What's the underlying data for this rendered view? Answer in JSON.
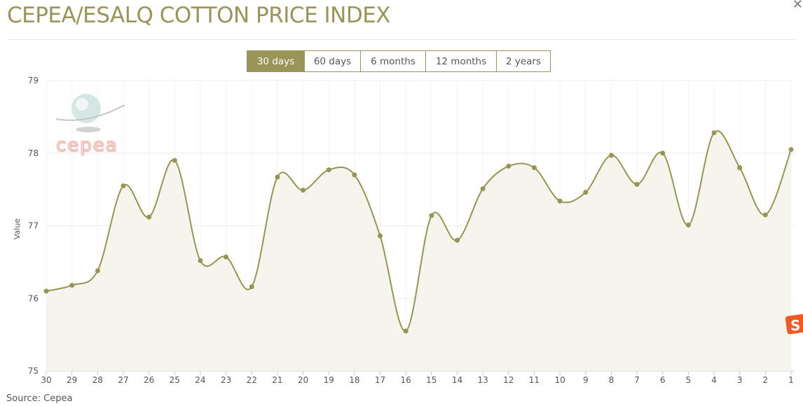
{
  "header": {
    "title": "CEPEA/ESALQ COTTON PRICE INDEX",
    "close_icon": "close-icon"
  },
  "range_buttons": [
    {
      "label": "30 days",
      "active": true
    },
    {
      "label": "60 days",
      "active": false
    },
    {
      "label": "6 months",
      "active": false
    },
    {
      "label": "12 months",
      "active": false
    },
    {
      "label": "2 years",
      "active": false
    }
  ],
  "watermark": {
    "logo_text": "cepea"
  },
  "footer": {
    "source": "Source: Cepea"
  },
  "colors": {
    "accent": "#999558",
    "line": "#979552",
    "fill": "#f5f5ee",
    "logo": "#f0b8b0"
  },
  "chart_data": {
    "type": "area",
    "title": "CEPEA/ESALQ COTTON PRICE INDEX",
    "xlabel": "",
    "ylabel": "Value",
    "ylim": [
      75,
      79
    ],
    "yticks": [
      75,
      76,
      77,
      78,
      79
    ],
    "grid": true,
    "categories": [
      "30",
      "29",
      "28",
      "27",
      "26",
      "25",
      "24",
      "23",
      "22",
      "21",
      "20",
      "19",
      "18",
      "17",
      "16",
      "15",
      "14",
      "13",
      "12",
      "11",
      "10",
      "9",
      "8",
      "7",
      "6",
      "5",
      "4",
      "3",
      "2",
      "1"
    ],
    "series": [
      {
        "name": "Value",
        "values": [
          76.1,
          76.18,
          76.38,
          77.55,
          77.12,
          77.9,
          76.52,
          76.57,
          76.16,
          77.67,
          77.49,
          77.77,
          77.7,
          76.86,
          75.55,
          77.14,
          76.8,
          77.51,
          77.82,
          77.8,
          77.34,
          77.46,
          77.97,
          77.57,
          78.0,
          77.01,
          78.28,
          77.8,
          77.15,
          78.05
        ]
      }
    ]
  }
}
